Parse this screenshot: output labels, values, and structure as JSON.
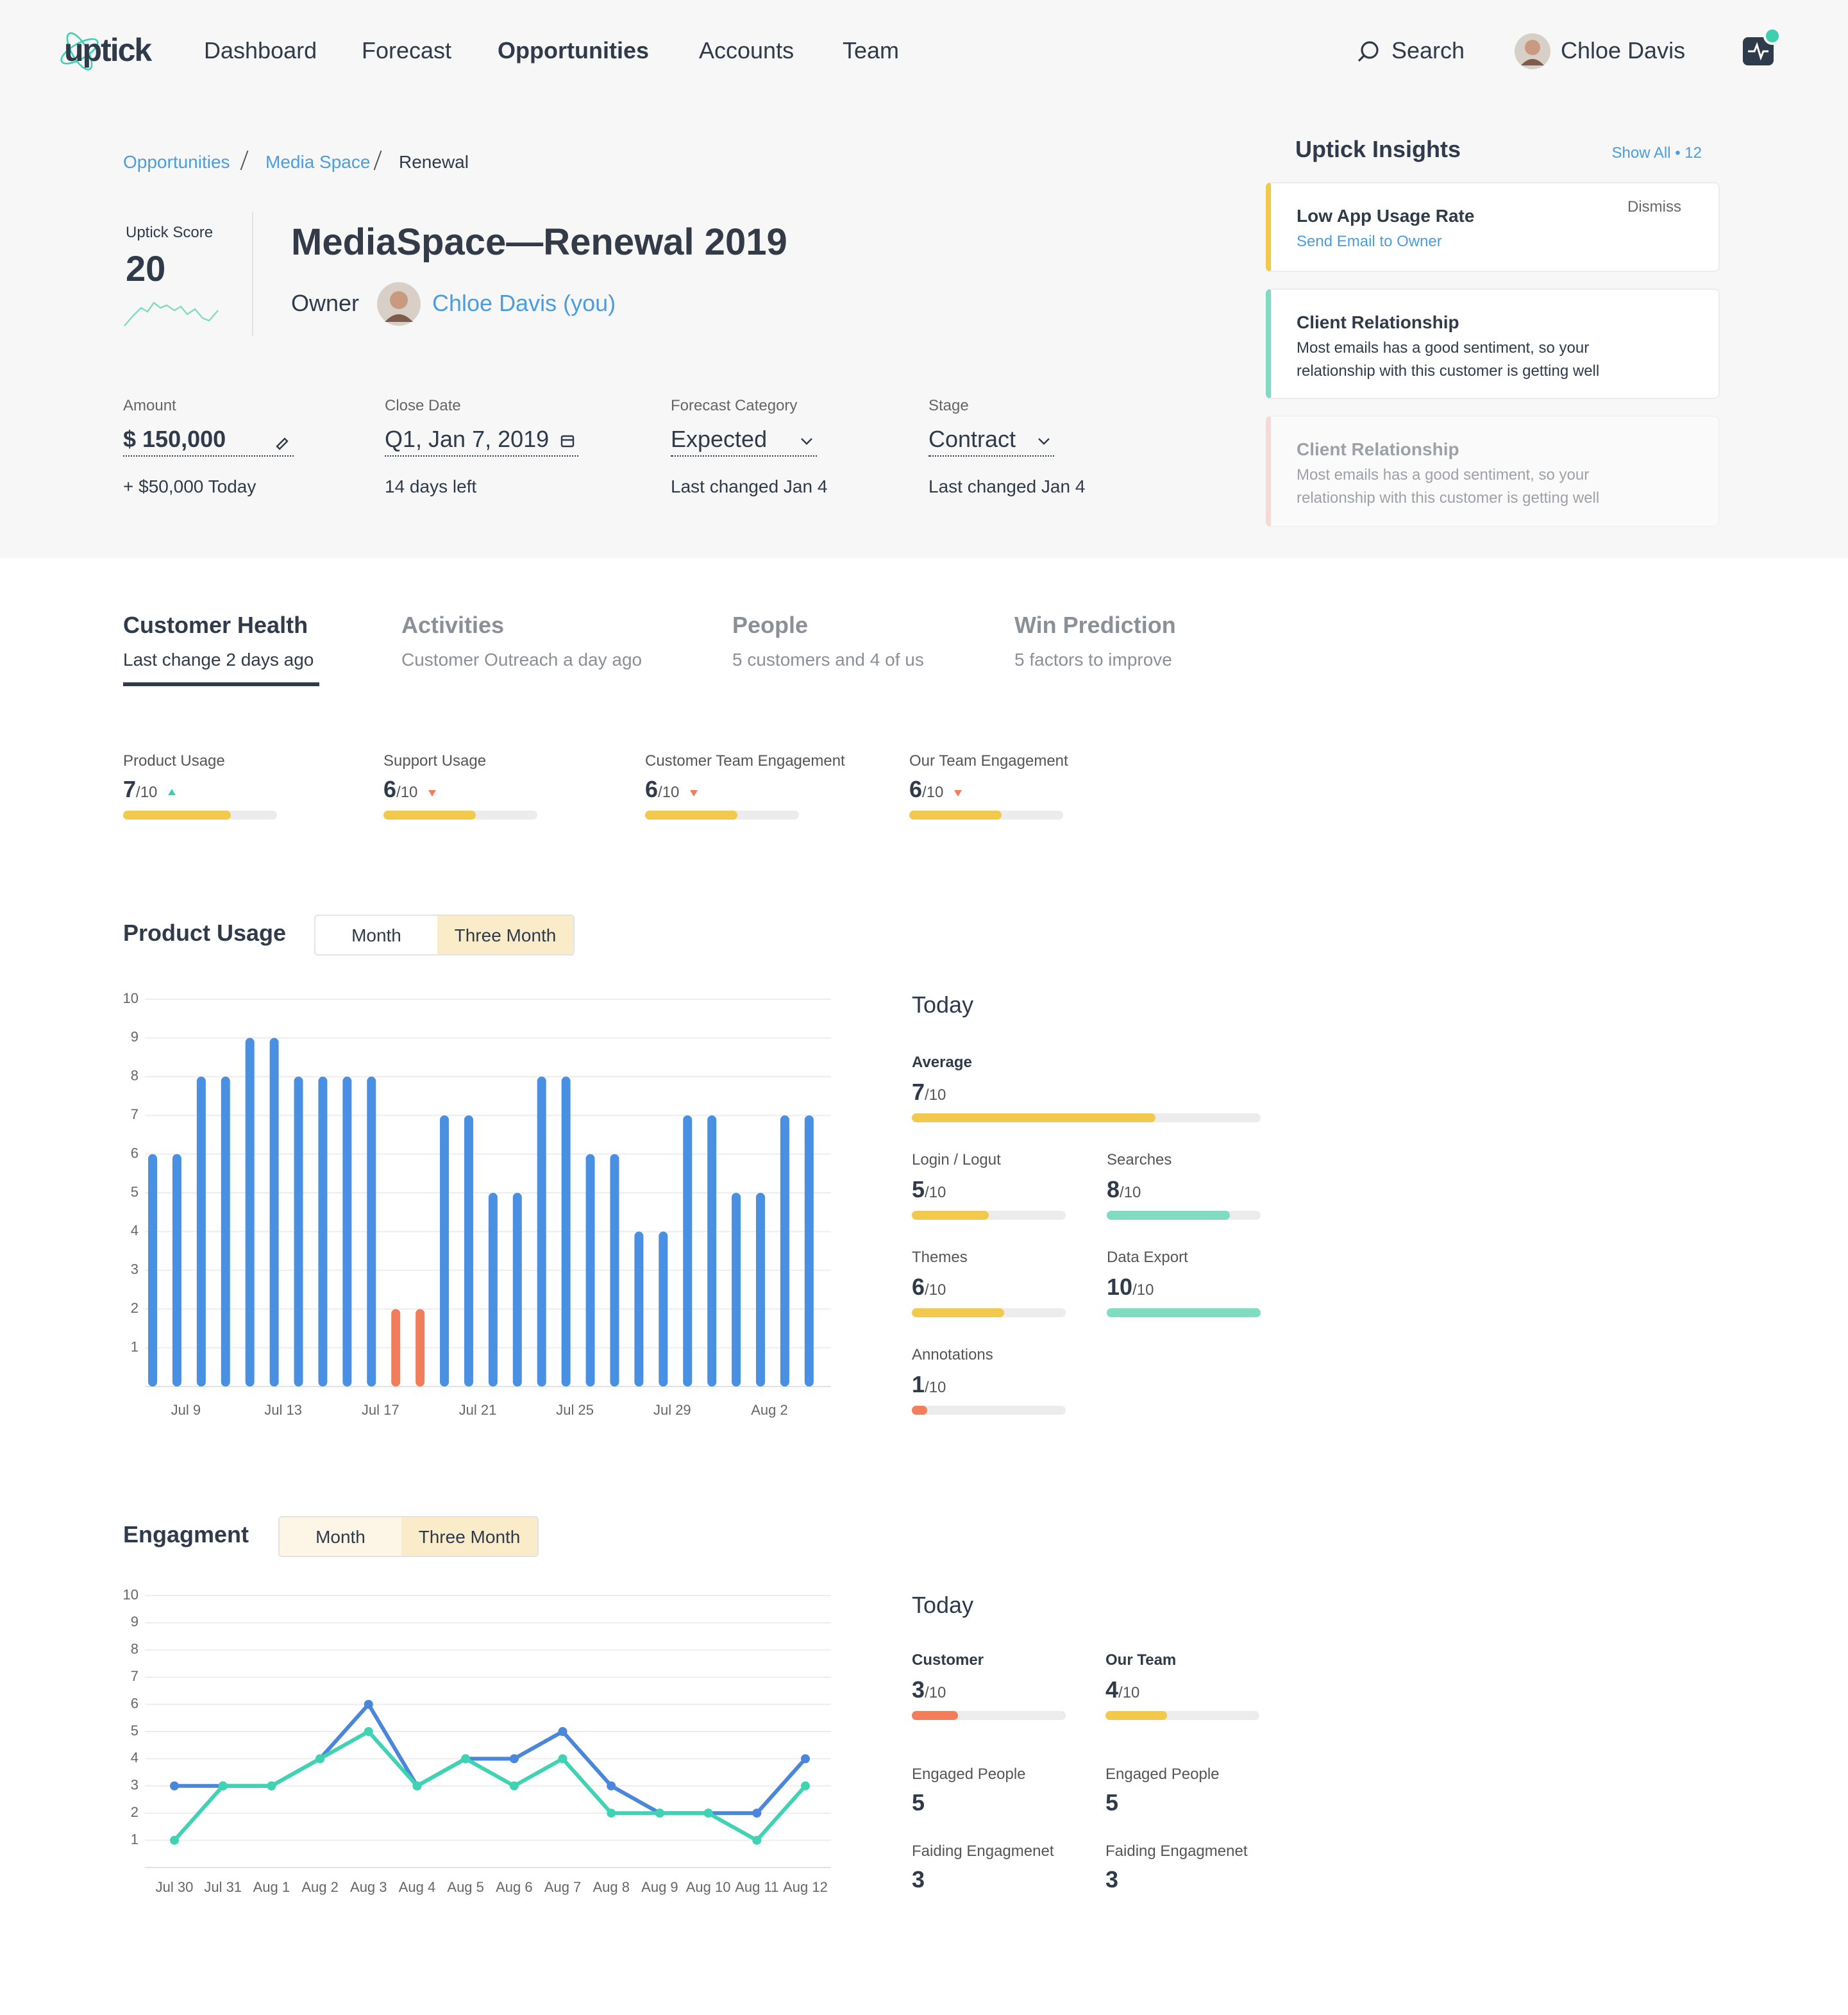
{
  "nav": {
    "logo": "uptick",
    "links": [
      {
        "label": "Dashboard"
      },
      {
        "label": "Forecast"
      },
      {
        "label": "Opportunities",
        "active": true
      },
      {
        "label": "Accounts"
      },
      {
        "label": "Team"
      }
    ],
    "search": "Search",
    "user": "Chloe Davis"
  },
  "breadcrumb": [
    "Opportunities",
    "Media Space",
    "Renewal"
  ],
  "score": {
    "label": "Uptick Score",
    "value": 20
  },
  "title": "MediaSpace—Renewal 2019",
  "owner": {
    "label": "Owner",
    "name": "Chloe Davis (you)"
  },
  "fields": [
    {
      "label": "Amount",
      "value": "$ 150,000",
      "note": "+ $50,000 Today"
    },
    {
      "label": "Close Date",
      "value": "Q1, Jan 7, 2019",
      "note": "14 days left"
    },
    {
      "label": "Forecast Category",
      "value": "Expected",
      "note": "Last changed Jan 4"
    },
    {
      "label": "Stage",
      "value": "Contract",
      "note": "Last changed Jan 4"
    }
  ],
  "insights": {
    "title": "Uptick Insights",
    "show_all": "Show All • 12",
    "cards": [
      {
        "title": "Low App Usage Rate",
        "link": "Send Email to Owner",
        "dismiss": "Dismiss",
        "color": "#f2c94c"
      },
      {
        "title": "Client Relationship",
        "text": "Most emails has a good sentiment, so your relationship with this customer is getting well",
        "color": "#7fdcc0"
      },
      {
        "title": "Client Relationship",
        "text": "Most emails has a good sentiment, so your relationship with this customer is getting well",
        "color": "#f4b9b2",
        "faded": true
      }
    ]
  },
  "tabs": [
    {
      "title": "Customer Health",
      "sub": "Last change 2 days ago",
      "active": true
    },
    {
      "title": "Activities",
      "sub": "Customer Outreach a day ago"
    },
    {
      "title": "People",
      "sub": "5 customers and 4 of us"
    },
    {
      "title": "Win Prediction",
      "sub": "5 factors to improve"
    }
  ],
  "scale": {
    "value": 10,
    "label": "/10"
  },
  "health": [
    {
      "label": "Product Usage",
      "value": 7,
      "trend": "up"
    },
    {
      "label": "Support Usage",
      "value": 6,
      "trend": "down"
    },
    {
      "label": "Customer Team Engagement",
      "value": 6,
      "trend": "down"
    },
    {
      "label": "Our Team Engagement",
      "value": 6,
      "trend": "down"
    }
  ],
  "chart_data": [
    {
      "type": "bar",
      "title": "Product Usage",
      "toggle": [
        "Month",
        "Three Month"
      ],
      "categories": [
        null,
        "Jul 9",
        null,
        null,
        null,
        "Jul 13",
        null,
        null,
        null,
        "Jul 17",
        null,
        null,
        null,
        "Jul 21",
        null,
        null,
        null,
        "Jul 25",
        null,
        null,
        null,
        "Jul 29",
        null,
        null,
        null,
        "Aug 2",
        null,
        null
      ],
      "values": [
        6,
        6,
        8,
        8,
        9,
        9,
        8,
        8,
        8,
        8,
        2,
        2,
        7,
        7,
        5,
        5,
        8,
        8,
        6,
        6,
        4,
        4,
        7,
        7,
        5,
        5,
        7,
        7
      ],
      "colors": [
        "#4a90e2",
        "#4a90e2",
        "#4a90e2",
        "#4a90e2",
        "#4a90e2",
        "#4a90e2",
        "#4a90e2",
        "#4a90e2",
        "#4a90e2",
        "#4a90e2",
        "#f27d5a",
        "#f27d5a",
        "#4a90e2",
        "#4a90e2",
        "#4a90e2",
        "#4a90e2",
        "#4a90e2",
        "#4a90e2",
        "#4a90e2",
        "#4a90e2",
        "#4a90e2",
        "#4a90e2",
        "#4a90e2",
        "#4a90e2",
        "#4a90e2",
        "#4a90e2",
        "#4a90e2",
        "#4a90e2"
      ],
      "ylim": [
        0,
        10
      ],
      "yticks": [
        1,
        2,
        3,
        4,
        5,
        6,
        7,
        8,
        9,
        10
      ],
      "grid": true
    },
    {
      "type": "line",
      "title": "Engagment",
      "toggle": [
        "Month",
        "Three Month"
      ],
      "categories": [
        "Jul 30",
        "Jul 31",
        "Aug 1",
        "Aug 2",
        "Aug 3",
        "Aug 4",
        "Aug 5",
        "Aug 6",
        "Aug 7",
        "Aug 8",
        "Aug 9",
        "Aug 10",
        "Aug 11",
        "Aug 12"
      ],
      "series": [
        {
          "color": "#4a86d9",
          "values": [
            3,
            3,
            3,
            4,
            6,
            3,
            4,
            4,
            5,
            3,
            2,
            2,
            2,
            4
          ]
        },
        {
          "color": "#40d3b3",
          "values": [
            1,
            3,
            3,
            4,
            5,
            3,
            4,
            3,
            4,
            2,
            2,
            2,
            1,
            3
          ]
        }
      ],
      "ylim": [
        0,
        10
      ],
      "yticks": [
        1,
        2,
        3,
        4,
        5,
        6,
        7,
        8,
        9,
        10
      ],
      "grid": true
    }
  ],
  "today_label": "Today",
  "usage_today": [
    {
      "label": "Average",
      "value": 7,
      "color": "#f2c94c"
    },
    {
      "label": "Login / Logut",
      "value": 5,
      "color": "#f2c94c"
    },
    {
      "label": "Searches",
      "value": 8,
      "color": "#7fdcc0"
    },
    {
      "label": "Themes",
      "value": 6,
      "color": "#f2c94c"
    },
    {
      "label": "Data Export",
      "value": 10,
      "color": "#7fdcc0"
    },
    {
      "label": "Annotations",
      "value": 1,
      "color": "#f27d5a"
    }
  ],
  "engagement_today": {
    "scores": [
      {
        "label": "Customer",
        "value": 3,
        "color": "#f27d5a"
      },
      {
        "label": "Our Team",
        "value": 4,
        "color": "#f2c94c"
      }
    ],
    "stats": [
      [
        {
          "label": "Engaged People",
          "value": 5
        },
        {
          "label": "Faiding Engagmenet",
          "value": 3
        }
      ],
      [
        {
          "label": "Engaged People",
          "value": 5
        },
        {
          "label": "Faiding Engagmenet",
          "value": 3
        }
      ]
    ]
  }
}
